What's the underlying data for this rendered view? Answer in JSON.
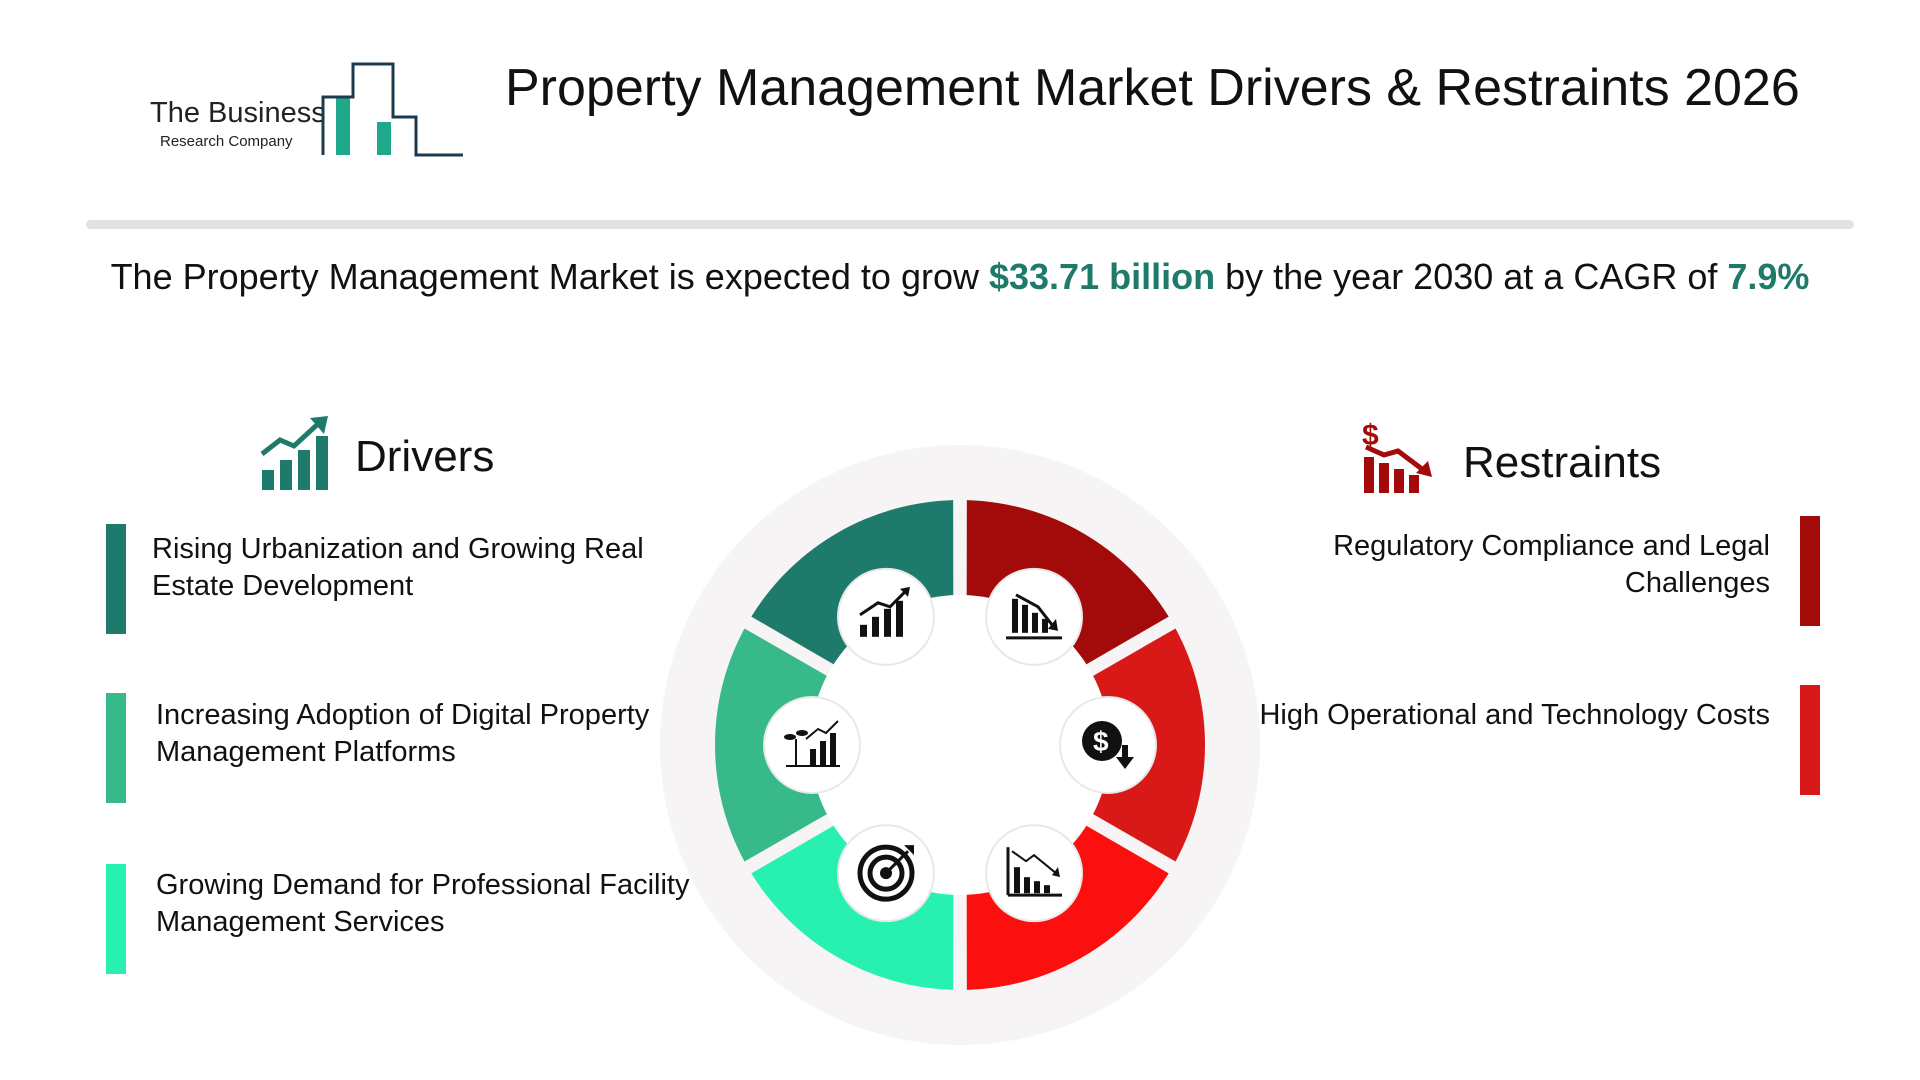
{
  "header": {
    "logo_line1": "The Business",
    "logo_line2": "Research Company",
    "title": "Property Management Market Drivers & Restraints 2026"
  },
  "summary": {
    "prefix": "The Property Management Market is expected to grow ",
    "amount": "$33.71 billion",
    "middle": " by the year 2030 at a CAGR of ",
    "cagr": "7.9%"
  },
  "drivers": {
    "title": "Drivers",
    "icon": "growth-chart-icon",
    "items": [
      {
        "text": "Rising Urbanization and Growing Real Estate Development",
        "color": "#1e7a6a"
      },
      {
        "text": "Increasing Adoption of Digital Property Management Platforms",
        "color": "#37b98a"
      },
      {
        "text": "Growing Demand for Professional Facility Management Services",
        "color": "#27f0b0"
      }
    ]
  },
  "restraints": {
    "title": "Restraints",
    "icon": "dollar-decline-icon",
    "items": [
      {
        "text": "Regulatory Compliance and Legal Challenges",
        "color": "#a30a0a"
      },
      {
        "text": "High Operational and Technology Costs",
        "color": "#d91818"
      }
    ]
  },
  "wheel": {
    "segments": [
      {
        "color": "#1e7a6a",
        "icon": "rising-bar-chart-icon"
      },
      {
        "color": "#37b98a",
        "icon": "plant-growth-chart-icon"
      },
      {
        "color": "#27f0b0",
        "icon": "target-icon"
      },
      {
        "color": "#a30a0a",
        "icon": "falling-bar-chart-icon"
      },
      {
        "color": "#d91818",
        "icon": "dollar-down-icon"
      },
      {
        "color": "#fc0f0f",
        "icon": "declining-chart-icon"
      }
    ]
  }
}
